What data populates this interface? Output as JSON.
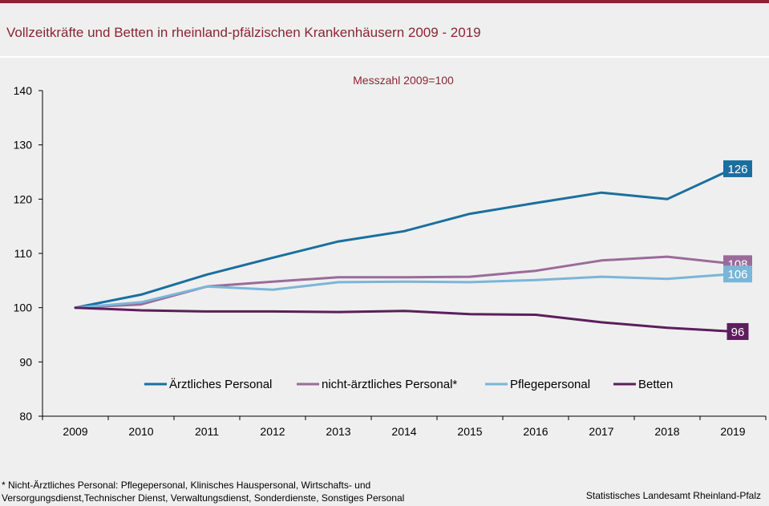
{
  "header": {
    "title": "Vollzeitkräfte und Betten in rheinland-pfälzischen Krankenhäusern 2009 - 2019"
  },
  "colors": {
    "brand": "#8c2433",
    "aerztliches": "#1a6f9e",
    "nicht_aerztliches": "#9a6b9a",
    "pflege": "#7ab6d8",
    "betten": "#5c1e5c"
  },
  "chart_data": {
    "type": "line",
    "subtitle": "Messzahl 2009=100",
    "x": [
      "2009",
      "2010",
      "2011",
      "2012",
      "2013",
      "2014",
      "2015",
      "2016",
      "2017",
      "2018",
      "2019"
    ],
    "ylim": [
      80,
      140
    ],
    "yticks": [
      "80",
      "90",
      "100",
      "110",
      "120",
      "130",
      "140"
    ],
    "grid": false,
    "legend_position": "bottom-inside",
    "series": [
      {
        "name": "Ärztliches Personal",
        "color": "#1a6f9e",
        "values": [
          100,
          102.4,
          106.1,
          109.2,
          112.2,
          114.1,
          117.3,
          119.3,
          121.2,
          120.0,
          125.6
        ],
        "end_label": "126"
      },
      {
        "name": "nicht-ärztliches Personal*",
        "color": "#9a6b9a",
        "values": [
          100,
          100.6,
          103.9,
          104.8,
          105.6,
          105.6,
          105.7,
          106.8,
          108.7,
          109.4,
          108.1
        ],
        "end_label": "108"
      },
      {
        "name": "Pflegepersonal",
        "color": "#7ab6d8",
        "values": [
          100,
          101.0,
          103.9,
          103.3,
          104.7,
          104.8,
          104.7,
          105.1,
          105.7,
          105.3,
          106.2
        ],
        "end_label": "106"
      },
      {
        "name": "Betten",
        "color": "#5c1e5c",
        "values": [
          100,
          99.5,
          99.3,
          99.3,
          99.2,
          99.4,
          98.8,
          98.7,
          97.3,
          96.3,
          95.6
        ],
        "end_label": "96"
      }
    ]
  },
  "footer": {
    "footnote_line1": "* Nicht-Ärztliches Personal: Pflegepersonal,  Klinisches Hauspersonal,  Wirtschafts- und",
    "footnote_line2": "Versorgungsdienst,Technischer  Dienst, Verwaltungsdienst,  Sonderdienste,  Sonstiges Personal",
    "source": "Statistisches Landesamt Rheinland-Pfalz"
  }
}
